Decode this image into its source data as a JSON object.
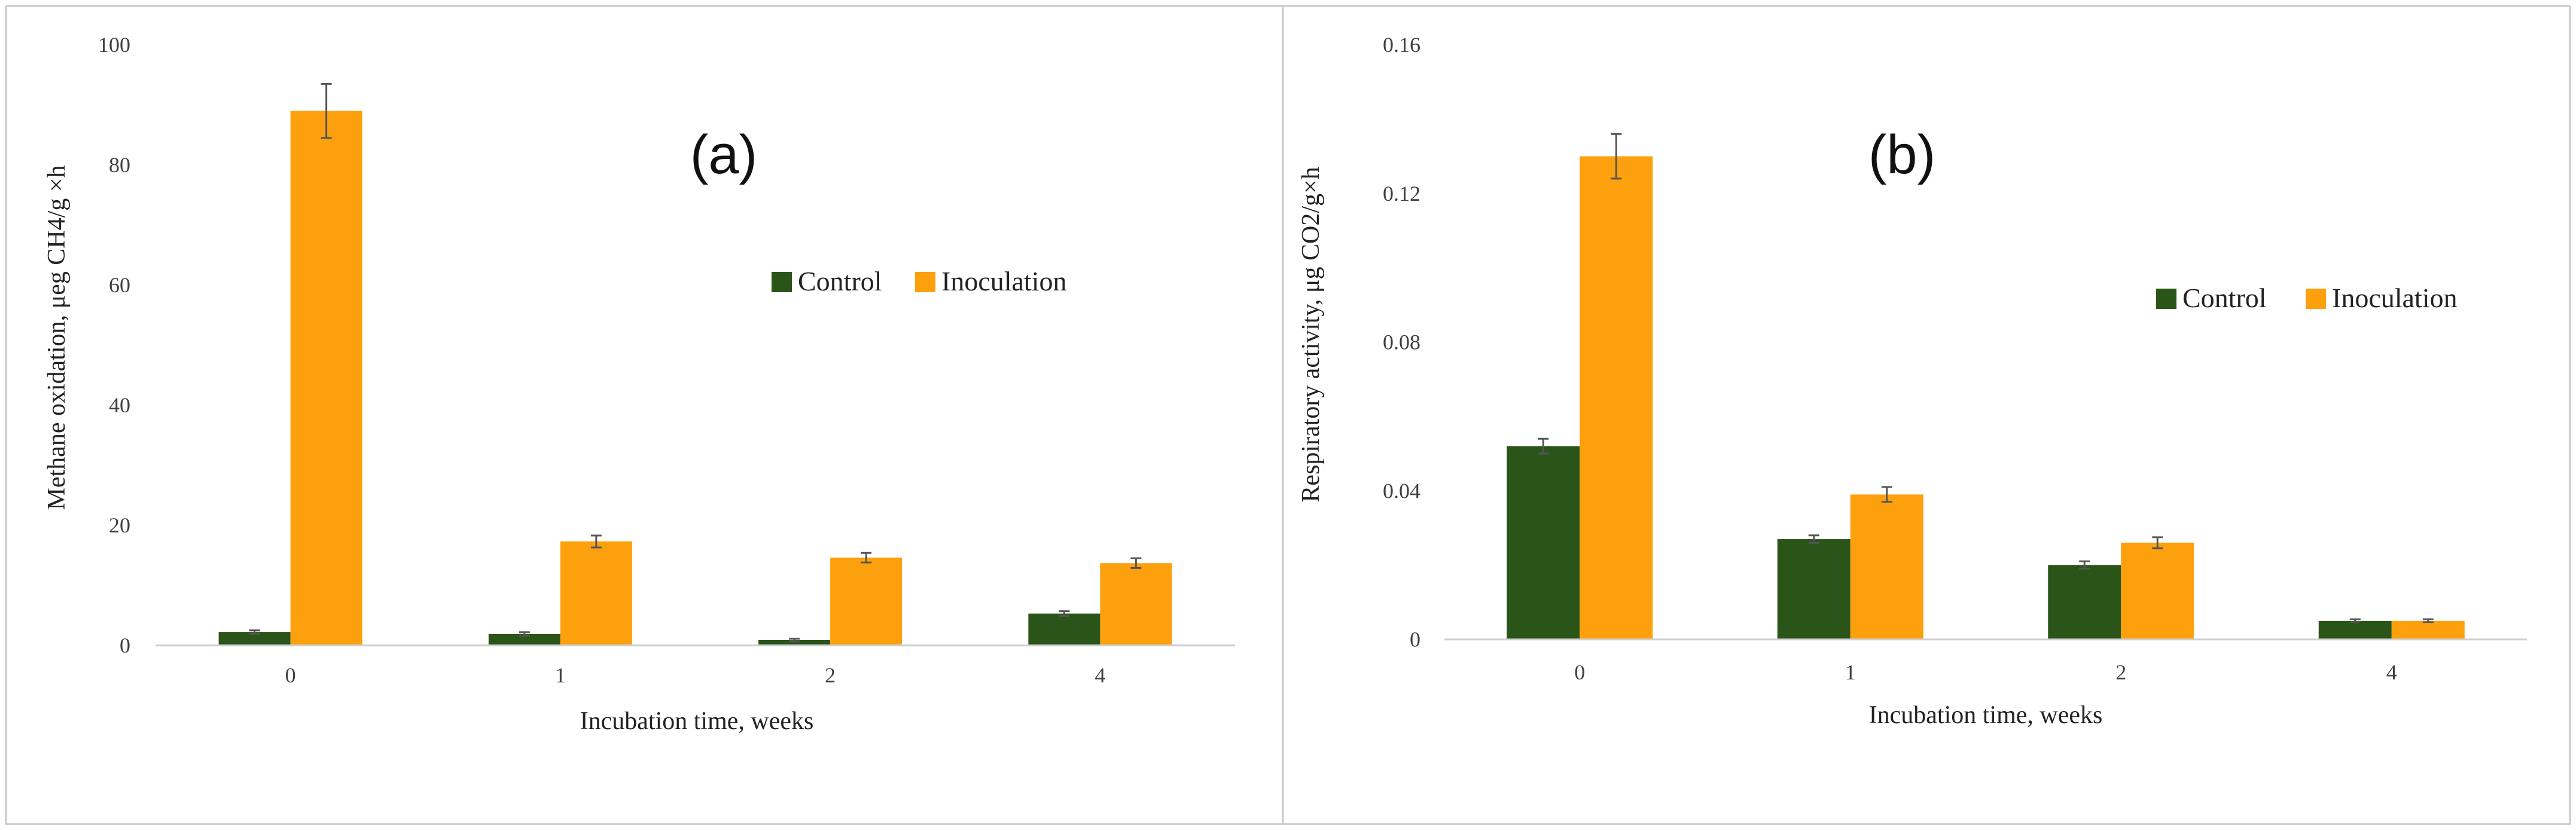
{
  "chart_data": [
    {
      "type": "bar",
      "label": "(a)",
      "categories": [
        "0",
        "1",
        "2",
        "4"
      ],
      "series": [
        {
          "name": "Control",
          "values": [
            2.2,
            1.9,
            0.9,
            5.3
          ],
          "errors": [
            0.3,
            0.3,
            0.2,
            0.4
          ]
        },
        {
          "name": "Inoculation",
          "values": [
            89,
            17.3,
            14.6,
            13.7
          ],
          "errors": [
            4.5,
            1.0,
            0.8,
            0.8
          ]
        }
      ],
      "xlabel": "Incubation time, weeks",
      "ylabel": "Methane oxidation,  μeg CH4/g ×h",
      "ylim": [
        0,
        100
      ],
      "yticks": [
        "0",
        "20",
        "40",
        "60",
        "80",
        "100"
      ],
      "legend": "center-right"
    },
    {
      "type": "bar",
      "label": "(b)",
      "categories": [
        "0",
        "1",
        "2",
        "4"
      ],
      "series": [
        {
          "name": "Control",
          "values": [
            0.052,
            0.027,
            0.02,
            0.005
          ],
          "errors": [
            0.002,
            0.001,
            0.001,
            0.0004
          ]
        },
        {
          "name": "Inoculation",
          "values": [
            0.13,
            0.039,
            0.026,
            0.005
          ],
          "errors": [
            0.006,
            0.002,
            0.0015,
            0.0004
          ]
        }
      ],
      "xlabel": "Incubation time, weeks",
      "ylabel": "Respiratory activity,  μg CO2/g×h",
      "ylim": [
        0,
        0.16
      ],
      "yticks": [
        "0",
        "0.04",
        "0.08",
        "0.12",
        "0.16"
      ],
      "legend": "center-right"
    }
  ],
  "colors": {
    "control": "#2a5418",
    "inoculation": "#fca10d",
    "error_bar": "#555555",
    "axis": "#d0d0d0",
    "frame": "#c8c8c8"
  }
}
